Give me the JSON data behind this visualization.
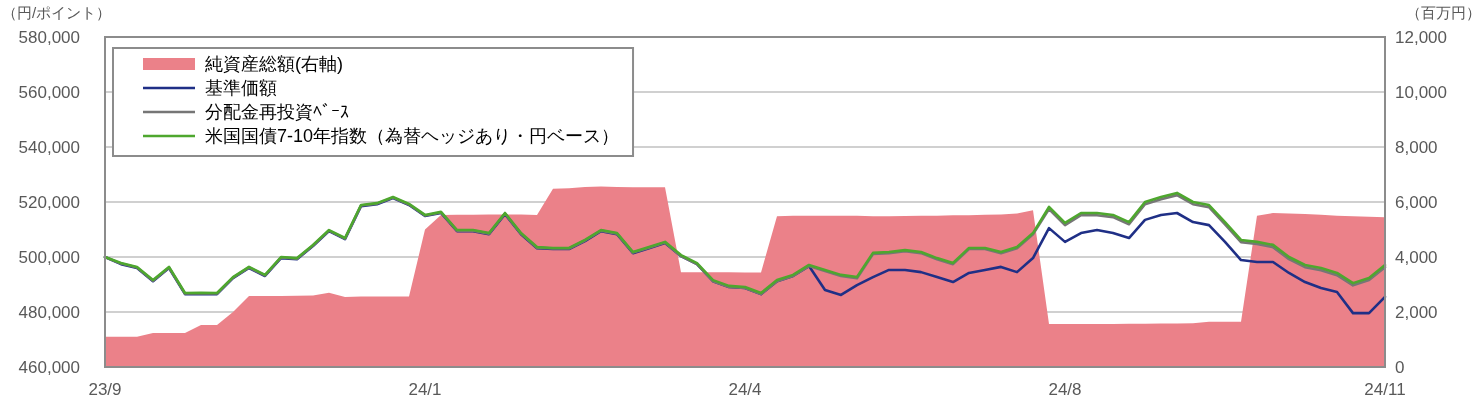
{
  "chart_data": {
    "type": "line",
    "ylabel": "（円/ポイント）",
    "y2label": "（百万円）",
    "grid": "y",
    "legend": "top left",
    "categories": [
      "23/9",
      null,
      null,
      null,
      null,
      null,
      null,
      null,
      null,
      null,
      null,
      null,
      null,
      null,
      null,
      null,
      null,
      null,
      null,
      null,
      "24/1",
      null,
      null,
      null,
      null,
      null,
      null,
      null,
      null,
      null,
      null,
      null,
      null,
      null,
      null,
      null,
      null,
      null,
      null,
      null,
      "24/4",
      null,
      null,
      null,
      null,
      null,
      null,
      null,
      null,
      null,
      null,
      null,
      null,
      null,
      null,
      null,
      null,
      null,
      null,
      null,
      "24/8",
      null,
      null,
      null,
      null,
      null,
      null,
      null,
      null,
      null,
      null,
      null,
      null,
      null,
      null,
      null,
      null,
      null,
      null,
      null,
      "24/11"
    ],
    "ylim": [
      460000,
      580000
    ],
    "yticks": [
      {
        "value": 460000,
        "label": "460,000"
      },
      {
        "value": 480000,
        "label": "480,000"
      },
      {
        "value": 500000,
        "label": "500,000"
      },
      {
        "value": 520000,
        "label": "520,000"
      },
      {
        "value": 540000,
        "label": "540,000"
      },
      {
        "value": 560000,
        "label": "560,000"
      },
      {
        "value": 580000,
        "label": "580,000"
      }
    ],
    "y2lim": [
      0,
      12000
    ],
    "y2ticks": [
      0,
      {
        "value": 2000,
        "label": "2,000"
      },
      {
        "value": 4000,
        "label": "4,000"
      },
      {
        "value": 6000,
        "label": "6,000"
      },
      {
        "value": 8000,
        "label": "8,000"
      },
      {
        "value": 10000,
        "label": "10,000"
      },
      {
        "value": 12000,
        "label": "12,000"
      }
    ],
    "series": [
      {
        "name": "純資産総額(右軸)",
        "type": "area",
        "axis": "y2",
        "color": "#eb8189",
        "values": [
          1100,
          1100,
          1100,
          1240,
          1240,
          1240,
          1530,
          1530,
          2000,
          2580,
          2580,
          2580,
          2590,
          2600,
          2700,
          2550,
          2560,
          2560,
          2560,
          2560,
          5000,
          5530,
          5540,
          5540,
          5550,
          5550,
          5550,
          5530,
          6480,
          6500,
          6550,
          6560,
          6550,
          6540,
          6540,
          6540,
          3450,
          3450,
          3450,
          3450,
          3440,
          3440,
          5480,
          5500,
          5500,
          5500,
          5500,
          5500,
          5480,
          5480,
          5490,
          5500,
          5500,
          5520,
          5520,
          5540,
          5550,
          5580,
          5700,
          1560,
          1560,
          1560,
          1560,
          1560,
          1570,
          1570,
          1580,
          1580,
          1590,
          1650,
          1650,
          1650,
          5500,
          5600,
          5580,
          5560,
          5540,
          5500,
          5480,
          5460,
          5450
        ]
      },
      {
        "name": "基準価額",
        "color": "#1f2f86",
        "values": [
          500000,
          497400,
          496000,
          491200,
          496000,
          486500,
          486600,
          486500,
          492300,
          496000,
          493100,
          499600,
          499200,
          504000,
          509400,
          506500,
          518500,
          519200,
          521400,
          518900,
          514900,
          516000,
          509400,
          509400,
          508300,
          515600,
          508300,
          503200,
          502900,
          502900,
          505800,
          509400,
          508300,
          501400,
          503200,
          505100,
          500300,
          497400,
          491200,
          489100,
          488700,
          486500,
          491200,
          493100,
          496700,
          488000,
          486200,
          489800,
          492700,
          495300,
          495300,
          494500,
          492700,
          490900,
          494200,
          495300,
          496400,
          494500,
          499600,
          510500,
          505500,
          508700,
          509800,
          508700,
          506900,
          513500,
          515300,
          516000,
          512700,
          511600,
          505500,
          498900,
          498200,
          498200,
          494200,
          490900,
          488700,
          487300,
          479600,
          479600,
          485500
        ]
      },
      {
        "name": "分配金再投資ﾍﾞｰｽ",
        "color": "#767676",
        "values": [
          500000,
          497600,
          496200,
          491400,
          496200,
          486700,
          486800,
          486700,
          492500,
          496200,
          493300,
          499800,
          499400,
          504200,
          509600,
          506700,
          518700,
          519400,
          521600,
          519100,
          515100,
          516200,
          509600,
          509600,
          508500,
          515800,
          508500,
          503400,
          503100,
          503100,
          506000,
          509600,
          508500,
          501600,
          503400,
          505300,
          500300,
          497400,
          491200,
          489100,
          488700,
          486500,
          491200,
          493100,
          496700,
          494900,
          493100,
          492300,
          501100,
          501400,
          502100,
          501400,
          499200,
          497400,
          502900,
          502900,
          501400,
          503200,
          508300,
          517400,
          511600,
          515200,
          515200,
          514500,
          511900,
          519200,
          521000,
          522500,
          519200,
          518100,
          511900,
          505400,
          504700,
          503600,
          499200,
          496300,
          495200,
          493400,
          489700,
          491600,
          496300
        ]
      },
      {
        "name": "米国国債7-10年指数（為替ヘッジあり・円ベース）",
        "color": "#4ea72e",
        "values": [
          500000,
          497800,
          496400,
          491600,
          496400,
          486900,
          487000,
          486900,
          492700,
          496400,
          493500,
          500000,
          499600,
          504400,
          509800,
          506900,
          518900,
          519600,
          521800,
          519300,
          515300,
          516400,
          509800,
          509800,
          508700,
          516000,
          508700,
          503600,
          503300,
          503300,
          506200,
          509800,
          508700,
          501800,
          503600,
          505500,
          500700,
          497800,
          491600,
          489500,
          489100,
          486900,
          491600,
          493500,
          497100,
          495300,
          493500,
          492700,
          501500,
          501800,
          502500,
          501800,
          499600,
          497800,
          503300,
          503300,
          501800,
          503600,
          508700,
          518200,
          512400,
          516000,
          516000,
          515300,
          512700,
          520000,
          521800,
          523300,
          520000,
          518900,
          512700,
          506200,
          505500,
          504400,
          500000,
          497100,
          496000,
          494200,
          490500,
          492400,
          497100
        ]
      }
    ]
  }
}
